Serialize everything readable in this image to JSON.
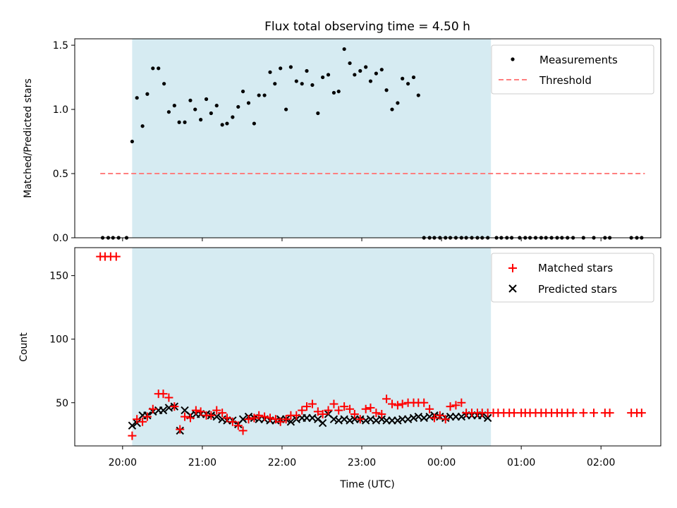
{
  "colors": {
    "shade": "#add8e6",
    "threshold": "#ff7f7f",
    "matched": "#ff0000",
    "predicted": "#000000",
    "measurement": "#000000"
  },
  "chart_data": [
    {
      "type": "scatter",
      "title": "Flux total observing time = 4.50 h",
      "xlabel": "",
      "ylabel": "Matched/Predicted stars",
      "x_unit": "hours (UTC, continuous from 20:00 = 20)",
      "xlim": [
        19.4,
        26.75
      ],
      "ylim": [
        0,
        1.55
      ],
      "yticks": [
        "0.0",
        "0.5",
        "1.0",
        "1.5"
      ],
      "shaded_region": {
        "x_start": 20.12,
        "x_end": 24.62
      },
      "legend_position": "top-right",
      "legend": [
        "Measurements",
        "Threshold"
      ],
      "threshold": {
        "name": "Threshold",
        "y": 0.5,
        "x_start": 19.72,
        "x_end": 26.55
      },
      "series": [
        {
          "name": "Measurements",
          "x": [
            19.75,
            19.82,
            19.88,
            19.95,
            20.05,
            20.12,
            20.18,
            20.25,
            20.31,
            20.38,
            20.45,
            20.52,
            20.58,
            20.65,
            20.71,
            20.78,
            20.85,
            20.91,
            20.98,
            21.05,
            21.11,
            21.18,
            21.25,
            21.31,
            21.38,
            21.45,
            21.51,
            21.58,
            21.65,
            21.71,
            21.78,
            21.85,
            21.91,
            21.98,
            22.05,
            22.11,
            22.18,
            22.25,
            22.31,
            22.38,
            22.45,
            22.51,
            22.58,
            22.65,
            22.71,
            22.78,
            22.85,
            22.91,
            22.98,
            23.05,
            23.11,
            23.18,
            23.25,
            23.31,
            23.38,
            23.45,
            23.51,
            23.58,
            23.65,
            23.71,
            23.78,
            23.85,
            23.91,
            23.98,
            24.05,
            24.11,
            24.18,
            24.25,
            24.31,
            24.38,
            24.45,
            24.51,
            24.58,
            24.69,
            24.75,
            24.82,
            24.88,
            24.98,
            25.05,
            25.11,
            25.18,
            25.25,
            25.31,
            25.38,
            25.45,
            25.51,
            25.58,
            25.65,
            25.78,
            25.91,
            26.05,
            26.11,
            26.38,
            26.45,
            26.51
          ],
          "y": [
            0.0,
            0.0,
            0.0,
            0.0,
            0.0,
            0.75,
            1.09,
            0.87,
            1.12,
            1.32,
            1.32,
            1.2,
            0.98,
            1.03,
            0.9,
            0.9,
            1.07,
            1.0,
            0.92,
            1.08,
            0.97,
            1.03,
            0.88,
            0.89,
            0.94,
            1.02,
            1.14,
            1.05,
            0.89,
            1.11,
            1.11,
            1.29,
            1.2,
            1.32,
            1.0,
            1.33,
            1.22,
            1.2,
            1.3,
            1.19,
            0.97,
            1.25,
            1.27,
            1.13,
            1.14,
            1.47,
            1.36,
            1.27,
            1.3,
            1.33,
            1.22,
            1.28,
            1.31,
            1.15,
            1.0,
            1.05,
            1.24,
            1.2,
            1.25,
            1.11,
            0.0,
            0.0,
            0.0,
            0.0,
            0.0,
            0.0,
            0.0,
            0.0,
            0.0,
            0.0,
            0.0,
            0.0,
            0.0,
            0.0,
            0.0,
            0.0,
            0.0,
            0.0,
            0.0,
            0.0,
            0.0,
            0.0,
            0.0,
            0.0,
            0.0,
            0.0,
            0.0,
            0.0,
            0.0,
            0.0,
            0.0,
            0.0,
            0.0,
            0.0,
            0.0
          ]
        }
      ]
    },
    {
      "type": "scatter",
      "title": "",
      "xlabel": "Time (UTC)",
      "ylabel": "Count",
      "x_unit": "hours (UTC, continuous from 20:00 = 20)",
      "xlim": [
        19.4,
        26.75
      ],
      "ylim": [
        16,
        172
      ],
      "xticks": [
        {
          "x": 20,
          "label": "20:00"
        },
        {
          "x": 21,
          "label": "21:00"
        },
        {
          "x": 22,
          "label": "22:00"
        },
        {
          "x": 23,
          "label": "23:00"
        },
        {
          "x": 24,
          "label": "00:00"
        },
        {
          "x": 25,
          "label": "01:00"
        },
        {
          "x": 26,
          "label": "02:00"
        }
      ],
      "yticks": [
        "50",
        "100",
        "150"
      ],
      "shaded_region": {
        "x_start": 20.12,
        "x_end": 24.62
      },
      "legend_position": "top-right",
      "legend": [
        "Matched stars",
        "Predicted stars"
      ],
      "series": [
        {
          "name": "Matched stars",
          "marker": "plus",
          "x": [
            19.72,
            19.78,
            19.85,
            19.92,
            20.12,
            20.18,
            20.25,
            20.31,
            20.38,
            20.45,
            20.51,
            20.58,
            20.65,
            20.72,
            20.78,
            20.85,
            20.92,
            20.98,
            21.05,
            21.11,
            21.18,
            21.25,
            21.31,
            21.38,
            21.45,
            21.51,
            21.58,
            21.65,
            21.71,
            21.78,
            21.85,
            21.92,
            21.98,
            22.05,
            22.11,
            22.18,
            22.25,
            22.31,
            22.38,
            22.45,
            22.51,
            22.58,
            22.65,
            22.71,
            22.78,
            22.85,
            22.91,
            22.98,
            23.05,
            23.11,
            23.18,
            23.25,
            23.31,
            23.38,
            23.45,
            23.51,
            23.58,
            23.65,
            23.71,
            23.78,
            23.85,
            23.91,
            23.98,
            24.05,
            24.11,
            24.18,
            24.25,
            24.31,
            24.38,
            24.45,
            24.51,
            24.58,
            24.65,
            24.71,
            24.78,
            24.85,
            24.91,
            25.0,
            25.05,
            25.11,
            25.18,
            25.25,
            25.31,
            25.38,
            25.45,
            25.51,
            25.58,
            25.65,
            25.78,
            25.91,
            26.05,
            26.11,
            26.38,
            26.45,
            26.51
          ],
          "y": [
            165,
            165,
            165,
            165,
            24,
            37,
            35,
            39,
            45,
            57,
            57,
            54,
            47,
            29,
            39,
            38,
            44,
            43,
            40,
            40,
            44,
            42,
            38,
            35,
            32,
            28,
            37,
            38,
            40,
            39,
            38,
            37,
            35,
            37,
            40,
            40,
            44,
            47,
            49,
            43,
            41,
            44,
            49,
            44,
            47,
            45,
            41,
            37,
            45,
            46,
            42,
            41,
            53,
            49,
            48,
            49,
            50,
            50,
            50,
            50,
            45,
            38,
            40,
            37,
            47,
            48,
            50,
            42,
            42,
            42,
            42,
            42,
            42,
            42,
            42,
            42,
            42,
            42,
            42,
            42,
            42,
            42,
            42,
            42,
            42,
            42,
            42,
            42,
            42,
            42,
            42,
            42,
            42,
            42,
            42
          ]
        },
        {
          "name": "Predicted stars",
          "marker": "x",
          "x": [
            20.12,
            20.18,
            20.25,
            20.31,
            20.38,
            20.45,
            20.51,
            20.58,
            20.65,
            20.72,
            20.78,
            20.85,
            20.92,
            20.98,
            21.05,
            21.11,
            21.18,
            21.25,
            21.31,
            21.38,
            21.45,
            21.51,
            21.58,
            21.65,
            21.71,
            21.78,
            21.85,
            21.92,
            21.98,
            22.05,
            22.11,
            22.18,
            22.25,
            22.31,
            22.38,
            22.45,
            22.51,
            22.58,
            22.65,
            22.71,
            22.78,
            22.85,
            22.91,
            22.98,
            23.05,
            23.11,
            23.18,
            23.25,
            23.31,
            23.38,
            23.45,
            23.51,
            23.58,
            23.65,
            23.71,
            23.78,
            23.85,
            23.91,
            23.98,
            24.05,
            24.11,
            24.18,
            24.25,
            24.31,
            24.38,
            24.45,
            24.51,
            24.58
          ],
          "y": [
            32,
            34,
            40,
            40,
            43,
            44,
            44,
            46,
            47,
            28,
            44,
            40,
            41,
            41,
            41,
            40,
            39,
            37,
            36,
            36,
            33,
            37,
            39,
            38,
            37,
            37,
            36,
            36,
            37,
            37,
            35,
            37,
            38,
            38,
            38,
            37,
            34,
            41,
            37,
            36,
            37,
            36,
            37,
            37,
            36,
            37,
            36,
            37,
            36,
            36,
            36,
            37,
            37,
            38,
            39,
            38,
            39,
            40,
            39,
            38,
            39,
            39,
            39,
            40,
            40,
            40,
            40,
            38
          ]
        }
      ]
    }
  ]
}
